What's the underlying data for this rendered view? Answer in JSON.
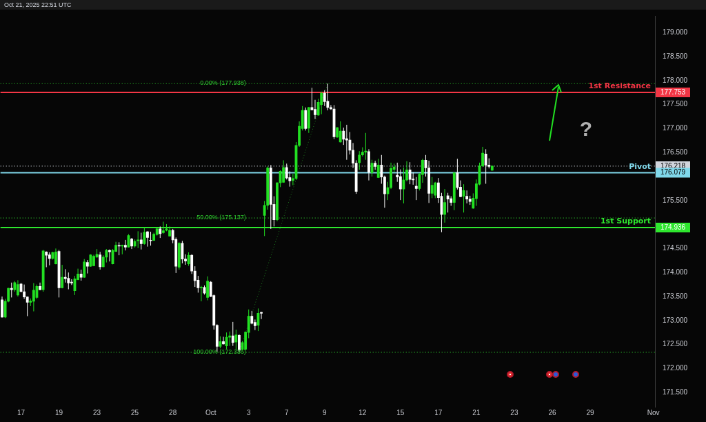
{
  "chart_data": {
    "type": "candlestick",
    "subtitle": "Oct 21, 2025 22:51 UTC",
    "categories": [
      null,
      null,
      null,
      null,
      null,
      null,
      "17",
      null,
      null,
      null,
      null,
      null,
      null,
      null,
      null,
      null,
      null,
      null,
      "19",
      null,
      null,
      null,
      null,
      null,
      null,
      null,
      null,
      null,
      null,
      null,
      "23",
      null,
      null,
      null,
      null,
      null,
      null,
      null,
      null,
      null,
      null,
      null,
      "25",
      null,
      null,
      null,
      null,
      null,
      null,
      null,
      null,
      null,
      null,
      null,
      "28",
      null,
      null,
      null,
      null,
      null,
      null,
      null,
      null,
      null,
      null,
      null,
      "Oct",
      null,
      null,
      null,
      null,
      null,
      null,
      null,
      null,
      null,
      null,
      null,
      "3",
      null,
      null,
      null,
      null,
      null,
      null,
      null,
      null,
      null,
      null,
      null,
      "7",
      null,
      null,
      null,
      null,
      null,
      null,
      null,
      null,
      null,
      null,
      null,
      "9",
      null,
      null,
      null,
      null,
      null,
      null,
      null,
      null,
      null,
      null,
      null,
      "12",
      null,
      null,
      null,
      null,
      null,
      null,
      null,
      null,
      null,
      null,
      null,
      "15",
      null,
      null,
      null,
      null,
      null,
      null,
      null,
      null,
      null,
      null,
      null,
      "17",
      null,
      null,
      null,
      null,
      null,
      null,
      null,
      null,
      null,
      null,
      null,
      "21",
      null,
      null,
      null,
      null,
      null,
      null,
      null,
      null,
      null,
      null,
      null,
      "23",
      null,
      null,
      null,
      null,
      null,
      null,
      null,
      null,
      null,
      null,
      null,
      "26",
      null,
      null,
      null,
      null,
      null,
      null,
      null,
      null,
      null,
      null,
      null,
      "29",
      null,
      null,
      null,
      null,
      null,
      null,
      null,
      null,
      null,
      null,
      null,
      null,
      null,
      null,
      null,
      null,
      null,
      null,
      null,
      "Nov"
    ],
    "ohlc": [
      [
        173.43,
        173.5,
        173.06,
        173.07
      ],
      [
        173.07,
        173.45,
        173.05,
        173.4
      ],
      [
        173.4,
        173.68,
        173.38,
        173.67
      ],
      [
        173.67,
        173.79,
        173.48,
        173.64
      ],
      [
        173.64,
        173.82,
        173.6,
        173.79
      ],
      [
        173.53,
        173.84,
        173.5,
        173.75
      ],
      [
        173.76,
        173.78,
        173.59,
        173.6
      ],
      [
        173.6,
        173.75,
        173.45,
        173.49
      ],
      [
        173.49,
        173.5,
        173.09,
        173.38
      ],
      [
        173.38,
        173.46,
        173.3,
        173.41
      ],
      [
        173.4,
        173.78,
        173.19,
        173.63
      ],
      [
        173.48,
        173.75,
        173.45,
        173.71
      ],
      [
        173.71,
        173.79,
        173.63,
        173.64
      ],
      [
        173.64,
        174.47,
        173.6,
        174.45
      ],
      [
        174.43,
        174.44,
        174.11,
        174.36
      ],
      [
        174.37,
        174.42,
        174.15,
        174.29
      ],
      [
        174.29,
        174.43,
        174.27,
        174.42
      ],
      [
        174.18,
        174.5,
        174.17,
        174.43
      ],
      [
        174.44,
        174.47,
        173.48,
        173.68
      ],
      [
        173.68,
        174.16,
        173.67,
        173.9
      ],
      [
        173.9,
        174.07,
        173.79,
        173.87
      ],
      [
        173.88,
        174.0,
        173.65,
        173.78
      ],
      [
        173.8,
        173.86,
        173.74,
        173.78
      ],
      [
        173.62,
        173.93,
        173.53,
        173.87
      ],
      [
        173.85,
        174.08,
        173.84,
        173.97
      ],
      [
        173.97,
        174.06,
        173.83,
        173.9
      ],
      [
        173.9,
        174.28,
        173.89,
        174.22
      ],
      [
        174.21,
        174.26,
        173.98,
        174.13
      ],
      [
        174.13,
        174.38,
        174.12,
        174.37
      ],
      [
        174.14,
        174.37,
        174.13,
        174.34
      ],
      [
        174.32,
        174.49,
        174.31,
        174.38
      ],
      [
        174.37,
        174.43,
        174.06,
        174.12
      ],
      [
        174.12,
        174.36,
        174.11,
        174.32
      ],
      [
        174.32,
        174.49,
        174.21,
        174.46
      ],
      [
        174.46,
        174.48,
        174.23,
        174.43
      ],
      [
        174.18,
        174.49,
        174.17,
        174.46
      ],
      [
        174.44,
        174.64,
        174.43,
        174.57
      ],
      [
        174.56,
        174.63,
        174.36,
        174.55
      ],
      [
        174.55,
        174.58,
        174.38,
        174.57
      ],
      [
        174.57,
        174.68,
        174.46,
        174.53
      ],
      [
        174.53,
        174.8,
        174.52,
        174.77
      ],
      [
        174.7,
        174.72,
        174.49,
        174.55
      ],
      [
        174.55,
        174.69,
        174.52,
        174.65
      ],
      [
        174.66,
        174.86,
        174.51,
        174.68
      ],
      [
        174.68,
        174.83,
        174.48,
        174.6
      ],
      [
        174.6,
        174.94,
        174.58,
        174.84
      ],
      [
        174.85,
        174.86,
        174.54,
        174.73
      ],
      [
        174.67,
        174.85,
        174.56,
        174.66
      ],
      [
        174.67,
        174.83,
        174.66,
        174.8
      ],
      [
        174.79,
        174.93,
        174.77,
        174.91
      ],
      [
        174.91,
        174.96,
        174.72,
        174.81
      ],
      [
        174.83,
        175.06,
        174.81,
        174.87
      ],
      [
        174.88,
        175.01,
        174.86,
        174.91
      ],
      [
        174.76,
        174.96,
        174.75,
        174.88
      ],
      [
        174.88,
        174.91,
        174.61,
        174.68
      ],
      [
        174.69,
        174.73,
        173.99,
        174.13
      ],
      [
        174.11,
        174.63,
        174.06,
        174.61
      ],
      [
        174.61,
        174.66,
        174.19,
        174.28
      ],
      [
        174.28,
        174.38,
        174.16,
        174.24
      ],
      [
        174.18,
        174.42,
        174.14,
        174.36
      ],
      [
        174.36,
        174.38,
        173.97,
        174.03
      ],
      [
        174.03,
        174.13,
        173.7,
        173.83
      ],
      [
        173.84,
        173.93,
        173.58,
        173.68
      ],
      [
        173.68,
        173.72,
        173.4,
        173.69
      ],
      [
        173.69,
        173.73,
        173.54,
        173.57
      ],
      [
        173.48,
        173.92,
        173.42,
        173.82
      ],
      [
        173.8,
        173.82,
        173.49,
        173.5
      ],
      [
        173.52,
        173.54,
        172.81,
        172.9
      ],
      [
        172.9,
        172.92,
        172.35,
        172.46
      ],
      [
        172.46,
        172.67,
        172.42,
        172.56
      ],
      [
        172.56,
        172.66,
        172.5,
        172.51
      ],
      [
        172.47,
        172.75,
        172.4,
        172.65
      ],
      [
        172.65,
        172.77,
        172.47,
        172.68
      ],
      [
        172.68,
        172.97,
        172.47,
        172.54
      ],
      [
        172.55,
        172.81,
        172.37,
        172.7
      ],
      [
        172.69,
        172.71,
        172.34,
        172.38
      ],
      [
        172.4,
        172.57,
        172.37,
        172.54
      ],
      [
        172.4,
        172.77,
        172.38,
        172.76
      ],
      [
        172.75,
        173.23,
        172.63,
        173.09
      ],
      [
        173.09,
        173.2,
        172.92,
        172.94
      ],
      [
        172.96,
        173.02,
        172.8,
        172.89
      ],
      [
        172.9,
        173.25,
        172.78,
        173.15
      ],
      [
        173.17,
        173.18,
        173.03,
        173.15
      ],
      [
        175.19,
        175.49,
        174.76,
        175.4
      ],
      [
        175.4,
        176.21,
        175.31,
        176.18
      ],
      [
        176.18,
        176.24,
        174.91,
        175.42
      ],
      [
        175.42,
        175.59,
        174.96,
        175.1
      ],
      [
        175.1,
        175.88,
        175.07,
        175.87
      ],
      [
        175.87,
        176.13,
        175.78,
        176.11
      ],
      [
        175.88,
        176.34,
        175.87,
        176.19
      ],
      [
        176.19,
        176.27,
        175.94,
        175.97
      ],
      [
        175.98,
        176.11,
        175.79,
        175.91
      ],
      [
        175.92,
        176.06,
        175.82,
        175.96
      ],
      [
        175.96,
        176.72,
        175.93,
        176.65
      ],
      [
        176.65,
        177.15,
        176.62,
        177.05
      ],
      [
        177.0,
        177.47,
        176.96,
        177.38
      ],
      [
        177.38,
        177.44,
        176.96,
        177.0
      ],
      [
        177.01,
        177.45,
        176.91,
        177.44
      ],
      [
        177.44,
        177.85,
        177.38,
        177.39
      ],
      [
        177.4,
        177.6,
        177.2,
        177.29
      ],
      [
        177.28,
        177.62,
        177.27,
        177.55
      ],
      [
        177.5,
        177.77,
        177.3,
        177.74
      ],
      [
        177.74,
        177.8,
        177.47,
        177.56
      ],
      [
        177.57,
        177.938,
        177.38,
        177.44
      ],
      [
        177.44,
        177.49,
        177.39,
        177.41
      ],
      [
        177.41,
        177.49,
        176.78,
        176.83
      ],
      [
        176.82,
        177.03,
        176.81,
        177.02
      ],
      [
        176.72,
        177.15,
        176.71,
        176.95
      ],
      [
        176.95,
        177.02,
        176.66,
        176.78
      ],
      [
        176.79,
        177.08,
        176.35,
        176.76
      ],
      [
        176.76,
        176.93,
        176.46,
        176.55
      ],
      [
        176.55,
        176.7,
        176.18,
        176.28
      ],
      [
        176.28,
        176.34,
        175.64,
        175.69
      ],
      [
        176.29,
        176.53,
        176.14,
        176.45
      ],
      [
        176.45,
        176.61,
        176.42,
        176.51
      ],
      [
        176.51,
        176.91,
        176.35,
        176.53
      ],
      [
        176.52,
        176.57,
        175.92,
        176.09
      ],
      [
        176.08,
        176.35,
        176.0,
        176.28
      ],
      [
        176.28,
        176.33,
        176.14,
        176.21
      ],
      [
        175.98,
        176.37,
        175.97,
        176.24
      ],
      [
        176.24,
        176.45,
        175.85,
        175.99
      ],
      [
        175.99,
        176.02,
        175.35,
        175.64
      ],
      [
        175.64,
        175.89,
        175.51,
        175.77
      ],
      [
        175.77,
        176.29,
        175.74,
        176.17
      ],
      [
        176.15,
        176.27,
        176.09,
        176.2
      ],
      [
        176.03,
        176.29,
        175.89,
        175.99
      ],
      [
        176.0,
        176.15,
        175.51,
        175.74
      ],
      [
        175.74,
        176.19,
        175.44,
        175.93
      ],
      [
        175.93,
        176.32,
        175.9,
        176.14
      ],
      [
        176.14,
        176.3,
        175.84,
        175.94
      ],
      [
        175.95,
        176.09,
        175.83,
        175.93
      ],
      [
        175.8,
        175.99,
        175.51,
        175.75
      ],
      [
        175.75,
        176.07,
        175.71,
        176.05
      ],
      [
        176.04,
        176.37,
        175.87,
        176.34
      ],
      [
        176.34,
        176.45,
        176.0,
        176.18
      ],
      [
        176.18,
        176.33,
        175.45,
        175.65
      ],
      [
        175.65,
        175.99,
        175.55,
        175.82
      ],
      [
        175.61,
        175.89,
        175.55,
        175.87
      ],
      [
        175.87,
        175.97,
        175.45,
        175.56
      ],
      [
        175.59,
        175.66,
        174.84,
        175.21
      ],
      [
        175.21,
        175.74,
        175.04,
        175.46
      ],
      [
        175.6,
        175.66,
        175.25,
        175.53
      ],
      [
        175.54,
        175.59,
        175.39,
        175.46
      ],
      [
        175.46,
        176.09,
        175.3,
        176.08
      ],
      [
        176.08,
        176.37,
        175.73,
        175.77
      ],
      [
        175.78,
        175.92,
        175.57,
        175.58
      ],
      [
        175.59,
        175.84,
        175.25,
        175.71
      ],
      [
        175.59,
        175.71,
        175.44,
        175.53
      ],
      [
        175.53,
        175.6,
        175.41,
        175.48
      ],
      [
        175.34,
        175.65,
        175.33,
        175.55
      ],
      [
        175.54,
        175.94,
        175.39,
        175.85
      ],
      [
        175.84,
        176.29,
        175.82,
        176.22
      ],
      [
        176.22,
        176.62,
        176.2,
        176.49
      ],
      [
        176.47,
        176.57,
        175.85,
        176.24
      ],
      [
        176.24,
        176.38,
        176.17,
        176.21
      ],
      [
        176.13,
        176.23,
        176.12,
        176.218
      ],
      null,
      null,
      null,
      null,
      null,
      null,
      null,
      null,
      null,
      null,
      null,
      null,
      null,
      null,
      null,
      null,
      null,
      null,
      null,
      null,
      null,
      null,
      null,
      null,
      null,
      null,
      null,
      null,
      null,
      null,
      null,
      null,
      null,
      null,
      null,
      null,
      null,
      null,
      null,
      null,
      null,
      null,
      null,
      null,
      null,
      null,
      null,
      null,
      null,
      null,
      null
    ],
    "colors": [
      "#ffffff",
      "#22e022",
      "#22e022",
      "#ffffff",
      "#22e022",
      "#22e022",
      "#ffffff",
      "#ffffff",
      "#ffffff",
      "#22e022",
      "#22e022",
      "#22e022",
      "#ffffff",
      "#22e022",
      "#ffffff",
      "#ffffff",
      "#22e022",
      "#22e022",
      "#ffffff",
      "#22e022",
      "#ffffff",
      "#ffffff",
      "#ffffff",
      "#22e022",
      "#22e022",
      "#ffffff",
      "#22e022",
      "#ffffff",
      "#22e022",
      "#22e022",
      "#22e022",
      "#ffffff",
      "#22e022",
      "#22e022",
      "#ffffff",
      "#22e022",
      "#22e022",
      "#ffffff",
      "#22e022",
      "#ffffff",
      "#22e022",
      "#ffffff",
      "#22e022",
      "#22e022",
      "#ffffff",
      "#22e022",
      "#ffffff",
      "#ffffff",
      "#22e022",
      "#22e022",
      "#ffffff",
      "#22e022",
      "#22e022",
      "#22e022",
      "#ffffff",
      "#ffffff",
      "#22e022",
      "#ffffff",
      "#ffffff",
      "#22e022",
      "#ffffff",
      "#ffffff",
      "#ffffff",
      "#22e022",
      "#ffffff",
      "#22e022",
      "#ffffff",
      "#ffffff",
      "#ffffff",
      "#22e022",
      "#ffffff",
      "#22e022",
      "#22e022",
      "#ffffff",
      "#22e022",
      "#ffffff",
      "#22e022",
      "#22e022",
      "#22e022",
      "#ffffff",
      "#ffffff",
      "#22e022",
      "#ffffff",
      "#22e022",
      "#22e022",
      "#ffffff",
      "#ffffff",
      "#22e022",
      "#22e022",
      "#22e022",
      "#ffffff",
      "#ffffff",
      "#22e022",
      "#22e022",
      "#22e022",
      "#22e022",
      "#ffffff",
      "#22e022",
      "#ffffff",
      "#ffffff",
      "#22e022",
      "#22e022",
      "#ffffff",
      "#ffffff",
      "#ffffff",
      "#ffffff",
      "#22e022",
      "#22e022",
      "#ffffff",
      "#ffffff",
      "#ffffff",
      "#ffffff",
      "#ffffff",
      "#22e022",
      "#22e022",
      "#22e022",
      "#ffffff",
      "#22e022",
      "#ffffff",
      "#22e022",
      "#ffffff",
      "#ffffff",
      "#22e022",
      "#22e022",
      "#22e022",
      "#ffffff",
      "#ffffff",
      "#22e022",
      "#22e022",
      "#ffffff",
      "#ffffff",
      "#ffffff",
      "#22e022",
      "#22e022",
      "#ffffff",
      "#ffffff",
      "#22e022",
      "#22e022",
      "#ffffff",
      "#ffffff",
      "#22e022",
      "#ffffff",
      "#ffffff",
      "#22e022",
      "#ffffff",
      "#ffffff",
      "#22e022",
      "#ffffff",
      "#ffffff",
      "#22e022",
      "#22e022",
      "#22e022",
      "#22e022",
      "#ffffff",
      "#ffffff",
      "#22e022",
      null,
      null,
      null,
      null,
      null,
      null,
      null,
      null,
      null,
      null,
      null,
      null,
      null,
      null,
      null,
      null,
      null,
      null,
      null,
      null,
      null,
      null,
      null,
      null,
      null,
      null,
      null,
      null,
      null,
      null,
      null,
      null,
      null,
      null,
      null,
      null,
      null,
      null,
      null,
      null,
      null,
      null,
      null,
      null,
      null,
      null,
      null,
      null,
      null,
      null,
      null
    ],
    "series": [
      {
        "type": "line",
        "values": [
          null,
          null,
          null,
          null,
          null,
          null,
          null,
          null,
          null,
          null,
          null,
          null,
          null,
          null,
          null,
          null,
          null,
          null,
          null,
          null,
          null,
          null,
          null,
          null,
          null,
          null,
          null,
          null,
          null,
          null,
          null,
          null,
          null,
          null,
          null,
          null,
          null,
          null,
          null,
          null,
          null,
          null,
          null,
          null,
          null,
          null,
          null,
          null,
          null,
          null,
          null,
          null,
          null,
          null,
          null,
          null,
          null,
          null,
          null,
          null,
          null,
          null,
          null,
          null,
          null,
          null,
          null,
          null,
          null,
          null,
          null,
          null,
          null,
          null,
          null,
          172.34,
          null,
          null,
          null,
          null,
          null,
          null,
          null,
          null,
          null,
          null,
          null,
          null,
          null,
          null,
          null,
          null,
          null,
          null,
          null,
          null,
          null,
          null,
          null,
          null,
          null,
          null,
          null,
          177.94,
          null,
          null,
          null,
          null,
          null,
          null,
          null,
          null,
          null,
          null,
          null,
          null,
          null,
          null,
          null,
          null,
          null,
          null,
          null,
          null,
          null,
          null,
          null,
          null,
          null,
          null,
          null,
          null,
          null,
          null,
          null,
          null,
          null,
          null,
          null,
          null,
          null,
          null,
          null,
          null,
          null,
          null,
          null,
          null,
          null,
          null,
          null,
          null,
          null,
          null,
          null,
          null,
          null,
          null,
          null,
          null,
          null,
          null,
          null,
          null,
          null,
          null,
          null,
          null,
          null,
          null,
          null,
          null,
          null,
          null,
          null,
          null,
          null,
          null,
          null,
          null,
          null,
          null,
          null,
          null,
          null,
          null,
          null,
          null,
          null,
          null,
          null,
          null,
          null,
          null,
          null,
          null,
          null,
          null,
          null,
          null,
          null,
          null,
          null,
          null,
          null,
          null,
          null
        ],
        "color": "#1e7a1e",
        "line_style": "dotted"
      }
    ],
    "ylim": [
      171.2,
      179.35
    ],
    "yticks": [
      {
        "value": 171.5,
        "label": "171.500"
      },
      {
        "value": 172,
        "label": "172.000"
      },
      {
        "value": 172.5,
        "label": "172.500"
      },
      {
        "value": 173,
        "label": "173.000"
      },
      {
        "value": 173.5,
        "label": "173.500"
      },
      {
        "value": 174,
        "label": "174.000"
      },
      {
        "value": 174.5,
        "label": "174.500"
      },
      {
        "value": 175.5,
        "label": "175.500"
      },
      {
        "value": 176.5,
        "label": "176.500"
      },
      {
        "value": 177,
        "label": "177.000"
      },
      {
        "value": 177.5,
        "label": "177.500"
      },
      {
        "value": 178,
        "label": "178.000"
      },
      {
        "value": 178.5,
        "label": "178.500"
      },
      {
        "value": 179,
        "label": "179.000"
      }
    ],
    "ref_lines": [
      {
        "axis": "y",
        "value": 177.938,
        "label": "0.00% (177.938)",
        "color": "#2ecc2e",
        "line_style": "dotted"
      },
      {
        "axis": "y",
        "value": 175.137,
        "label": "50.00% (175.137)",
        "color": "#2ecc2e",
        "line_style": "dotted"
      },
      {
        "axis": "y",
        "value": 172.336,
        "label": "100.00% (172.336)",
        "color": "#2ecc2e",
        "line_style": "dotted"
      },
      {
        "axis": "y",
        "value": 176.218,
        "label": null,
        "color": "#d1d4dc",
        "line_style": "dotted"
      },
      {
        "axis": "y",
        "value": 177.753,
        "label": "1st Resistance",
        "color": "#f23645",
        "line_style": "solid"
      },
      {
        "axis": "y",
        "value": 176.079,
        "label": "Pivot",
        "color": "#80d8ea",
        "line_style": "solid"
      },
      {
        "axis": "y",
        "value": 174.936,
        "label": "1st Support",
        "color": "#2ee62e",
        "line_style": "solid"
      }
    ],
    "annotations": [
      "?",
      "176.218",
      "177.753",
      "176.079",
      "174.936"
    ]
  }
}
